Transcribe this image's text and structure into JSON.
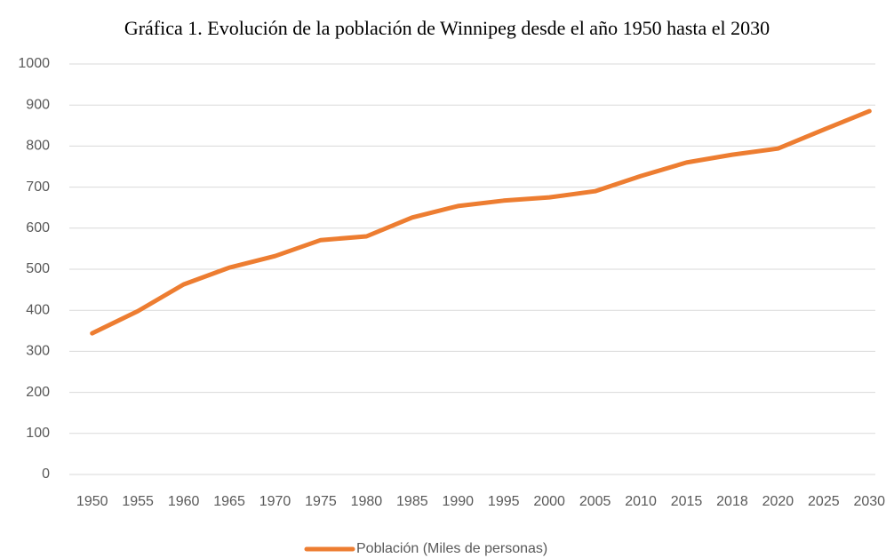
{
  "chart_data": {
    "type": "line",
    "title": "Gráfica 1. Evolución de la población de Winnipeg desde el año 1950 hasta el 2030",
    "categories": [
      "1950",
      "1955",
      "1960",
      "1965",
      "1970",
      "1975",
      "1980",
      "1985",
      "1990",
      "1995",
      "2000",
      "2005",
      "2010",
      "2015",
      "2018",
      "2020",
      "2025",
      "2030"
    ],
    "series": [
      {
        "name": "Población (Miles de personas)",
        "color": "#ed7d31",
        "values": [
          344,
          398,
          463,
          504,
          532,
          571,
          580,
          626,
          654,
          667,
          675,
          690,
          727,
          760,
          779,
          794,
          840,
          885
        ]
      }
    ],
    "ylim": [
      0,
      1000
    ],
    "yticks": [
      0,
      100,
      200,
      300,
      400,
      500,
      600,
      700,
      800,
      900,
      1000
    ],
    "grid": true,
    "legend": "bottom"
  }
}
